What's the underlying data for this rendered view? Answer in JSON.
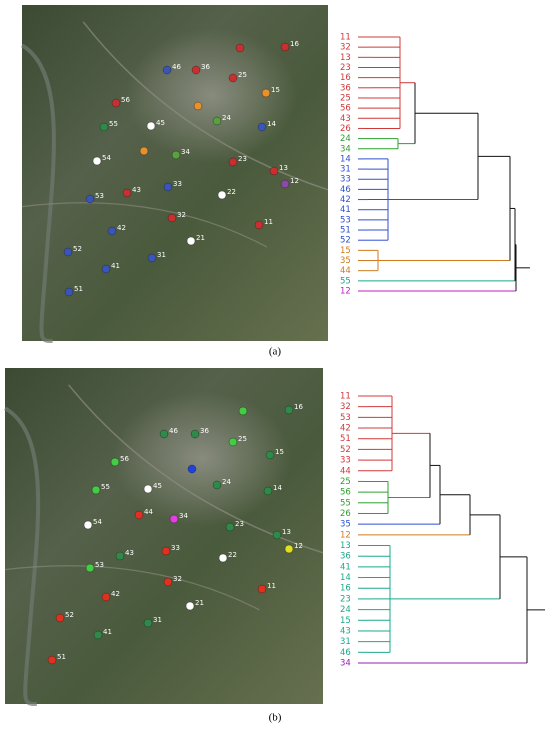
{
  "panels": [
    {
      "caption": "(a)",
      "map_points": [
        {
          "label": "16",
          "color": "#c83030"
        },
        {
          "label": null,
          "color": "#c83030"
        },
        {
          "label": "46",
          "color": "#3a55b8"
        },
        {
          "label": "36",
          "color": "#c83030"
        },
        {
          "label": "25",
          "color": "#c83030"
        },
        {
          "label": "15",
          "color": "#e8902a"
        },
        {
          "label": "56",
          "color": "#c83030"
        },
        {
          "label": null,
          "color": "#e8902a"
        },
        {
          "label": "45",
          "color": "#ffffff"
        },
        {
          "label": "24",
          "color": "#58a040"
        },
        {
          "label": "55",
          "color": "#2e8a48"
        },
        {
          "label": "14",
          "color": "#3a55b8"
        },
        {
          "label": "34",
          "color": "#58a040"
        },
        {
          "label": null,
          "color": "#e8902a"
        },
        {
          "label": "54",
          "color": "#ffffff"
        },
        {
          "label": "23",
          "color": "#c83030"
        },
        {
          "label": "13",
          "color": "#c83030"
        },
        {
          "label": "12",
          "color": "#8a4aa8"
        },
        {
          "label": "43",
          "color": "#c83030"
        },
        {
          "label": "33",
          "color": "#3a55b8"
        },
        {
          "label": "22",
          "color": "#ffffff"
        },
        {
          "label": "53",
          "color": "#3a55b8"
        },
        {
          "label": "32",
          "color": "#c83030"
        },
        {
          "label": "11",
          "color": "#c83030"
        },
        {
          "label": "42",
          "color": "#3a55b8"
        },
        {
          "label": "21",
          "color": "#ffffff"
        },
        {
          "label": "52",
          "color": "#3a55b8"
        },
        {
          "label": "31",
          "color": "#3a55b8"
        },
        {
          "label": "41",
          "color": "#3a55b8"
        },
        {
          "label": "51",
          "color": "#3a55b8"
        }
      ],
      "dendrogram_leaves": [
        {
          "label": "11",
          "color": "#d03838"
        },
        {
          "label": "32",
          "color": "#d03838"
        },
        {
          "label": "13",
          "color": "#d03838"
        },
        {
          "label": "23",
          "color": "#d03838"
        },
        {
          "label": "16",
          "color": "#d03838"
        },
        {
          "label": "36",
          "color": "#d03838"
        },
        {
          "label": "25",
          "color": "#d03838"
        },
        {
          "label": "56",
          "color": "#d03838"
        },
        {
          "label": "43",
          "color": "#d03838"
        },
        {
          "label": "26",
          "color": "#d03838"
        },
        {
          "label": "24",
          "color": "#2ca02c"
        },
        {
          "label": "34",
          "color": "#2ca02c"
        },
        {
          "label": "14",
          "color": "#2f4fd0"
        },
        {
          "label": "31",
          "color": "#2f4fd0"
        },
        {
          "label": "33",
          "color": "#2f4fd0"
        },
        {
          "label": "46",
          "color": "#2f4fd0"
        },
        {
          "label": "42",
          "color": "#2f4fd0"
        },
        {
          "label": "41",
          "color": "#2f4fd0"
        },
        {
          "label": "53",
          "color": "#2f4fd0"
        },
        {
          "label": "51",
          "color": "#2f4fd0"
        },
        {
          "label": "52",
          "color": "#2f4fd0"
        },
        {
          "label": "15",
          "color": "#d07a1e"
        },
        {
          "label": "35",
          "color": "#d07a1e"
        },
        {
          "label": "44",
          "color": "#d07a1e"
        },
        {
          "label": "55",
          "color": "#1aa88a"
        },
        {
          "label": "12",
          "color": "#c020c0"
        }
      ]
    },
    {
      "caption": "(b)",
      "map_points": [
        {
          "label": "16",
          "color": "#2e8a48"
        },
        {
          "label": null,
          "color": "#44cc44"
        },
        {
          "label": "46",
          "color": "#2e8a48"
        },
        {
          "label": "36",
          "color": "#2e8a48"
        },
        {
          "label": "25",
          "color": "#44cc44"
        },
        {
          "label": "15",
          "color": "#2e8a48"
        },
        {
          "label": "56",
          "color": "#44cc44"
        },
        {
          "label": null,
          "color": "#2040e0"
        },
        {
          "label": "45",
          "color": "#ffffff"
        },
        {
          "label": "24",
          "color": "#2e8a48"
        },
        {
          "label": "55",
          "color": "#44cc44"
        },
        {
          "label": "14",
          "color": "#2e8a48"
        },
        {
          "label": "34",
          "color": "#e040e0"
        },
        {
          "label": "44",
          "color": "#e03020"
        },
        {
          "label": "54",
          "color": "#ffffff"
        },
        {
          "label": "23",
          "color": "#2e8a48"
        },
        {
          "label": "13",
          "color": "#2e8a48"
        },
        {
          "label": "12",
          "color": "#e0e020"
        },
        {
          "label": "43",
          "color": "#2e8a48"
        },
        {
          "label": "33",
          "color": "#e03020"
        },
        {
          "label": "22",
          "color": "#ffffff"
        },
        {
          "label": "53",
          "color": "#44cc44"
        },
        {
          "label": "32",
          "color": "#e03020"
        },
        {
          "label": "11",
          "color": "#e03020"
        },
        {
          "label": "42",
          "color": "#e03020"
        },
        {
          "label": "21",
          "color": "#ffffff"
        },
        {
          "label": "52",
          "color": "#e03020"
        },
        {
          "label": "31",
          "color": "#2e8a48"
        },
        {
          "label": "41",
          "color": "#2e8a48"
        },
        {
          "label": "51",
          "color": "#e03020"
        }
      ],
      "dendrogram_leaves": [
        {
          "label": "11",
          "color": "#d03838"
        },
        {
          "label": "32",
          "color": "#d03838"
        },
        {
          "label": "53",
          "color": "#d03838"
        },
        {
          "label": "42",
          "color": "#d03838"
        },
        {
          "label": "51",
          "color": "#d03838"
        },
        {
          "label": "52",
          "color": "#d03838"
        },
        {
          "label": "33",
          "color": "#d03838"
        },
        {
          "label": "44",
          "color": "#d03838"
        },
        {
          "label": "25",
          "color": "#2ca02c"
        },
        {
          "label": "56",
          "color": "#2ca02c"
        },
        {
          "label": "55",
          "color": "#2ca02c"
        },
        {
          "label": "26",
          "color": "#2ca02c"
        },
        {
          "label": "35",
          "color": "#2f4fd0"
        },
        {
          "label": "12",
          "color": "#d07a1e"
        },
        {
          "label": "13",
          "color": "#1aa88a"
        },
        {
          "label": "36",
          "color": "#1aa88a"
        },
        {
          "label": "41",
          "color": "#1aa88a"
        },
        {
          "label": "14",
          "color": "#1aa88a"
        },
        {
          "label": "16",
          "color": "#1aa88a"
        },
        {
          "label": "23",
          "color": "#1aa88a"
        },
        {
          "label": "24",
          "color": "#1aa88a"
        },
        {
          "label": "15",
          "color": "#1aa88a"
        },
        {
          "label": "43",
          "color": "#1aa88a"
        },
        {
          "label": "31",
          "color": "#1aa88a"
        },
        {
          "label": "46",
          "color": "#1aa88a"
        },
        {
          "label": "34",
          "color": "#9020b0"
        }
      ]
    }
  ]
}
